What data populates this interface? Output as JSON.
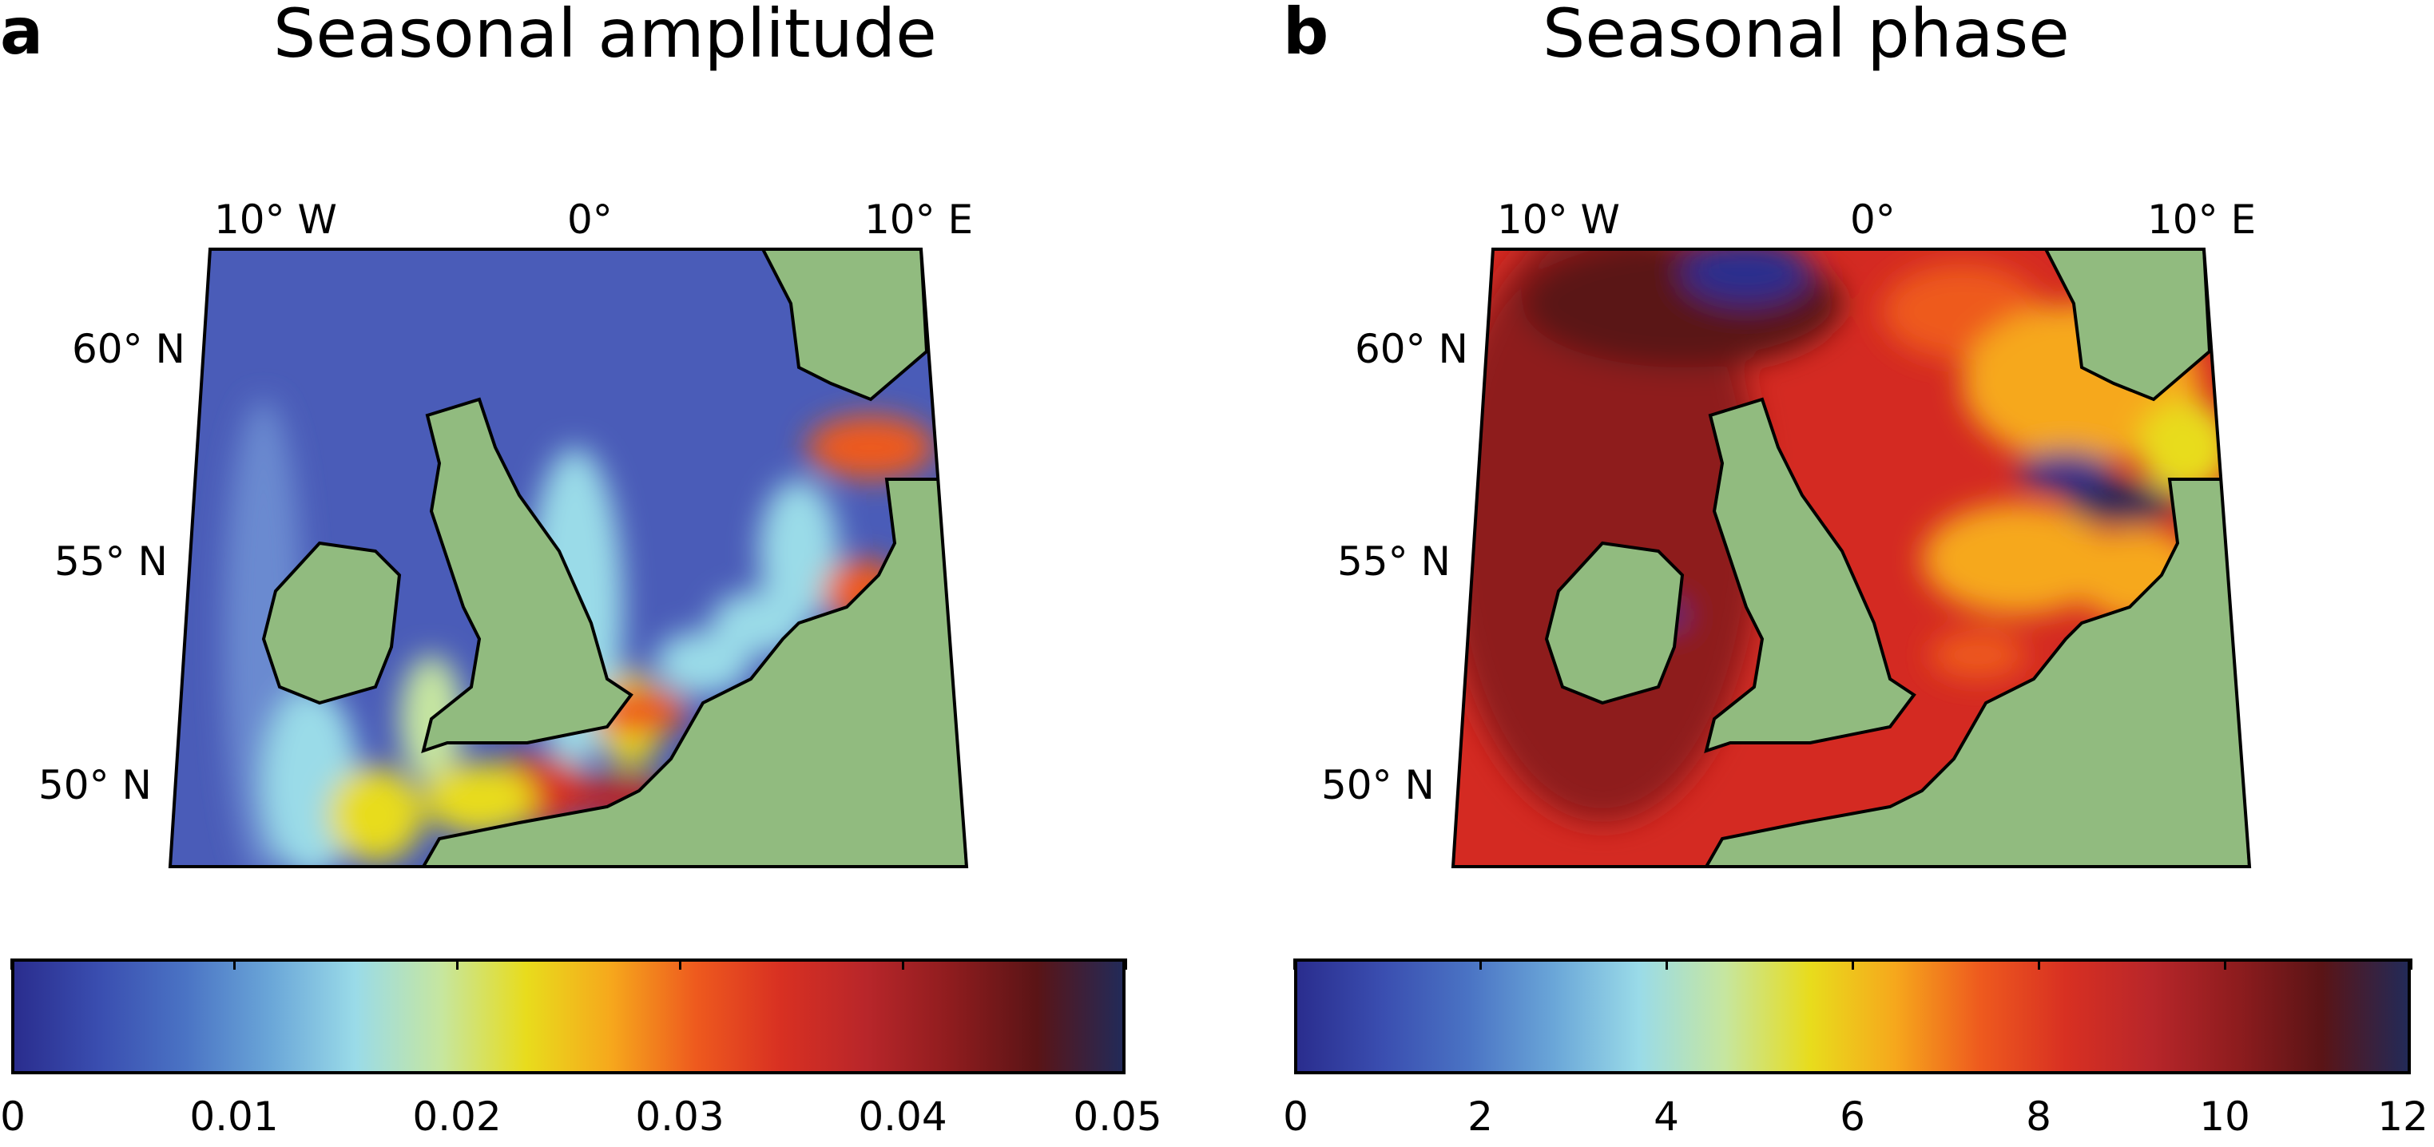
{
  "colors": {
    "land": "#91bb7f",
    "coast": "#000000",
    "colormap": [
      "#2a2d8e",
      "#3a4eb0",
      "#4a73c4",
      "#6aa6d8",
      "#9adbe8",
      "#c6e6a0",
      "#e8dc1c",
      "#f6a81c",
      "#ee5a1e",
      "#d83022",
      "#b8262a",
      "#8e1c1e",
      "#5a1416",
      "#222a58"
    ]
  },
  "panels": [
    {
      "id": "a",
      "letter": "a",
      "title": "Seasonal amplitude",
      "lon_labels": [
        "10° W",
        "0°",
        "10° E"
      ],
      "lat_labels": [
        "60° N",
        "55° N",
        "50° N"
      ],
      "colorbar": {
        "ticks": [
          "0",
          "0.01",
          "0.02",
          "0.03",
          "0.04",
          "0.05"
        ],
        "range": [
          0,
          0.05
        ]
      },
      "sea_color": "#4a5cb8"
    },
    {
      "id": "b",
      "letter": "b",
      "title": "Seasonal phase",
      "lon_labels": [
        "10° W",
        "0°",
        "10° E"
      ],
      "lat_labels": [
        "60° N",
        "55° N",
        "50° N"
      ],
      "colorbar": {
        "ticks": [
          "0",
          "2",
          "4",
          "6",
          "8",
          "10",
          "12"
        ],
        "range": [
          0,
          12
        ]
      },
      "sea_color": "#d42a22"
    }
  ]
}
